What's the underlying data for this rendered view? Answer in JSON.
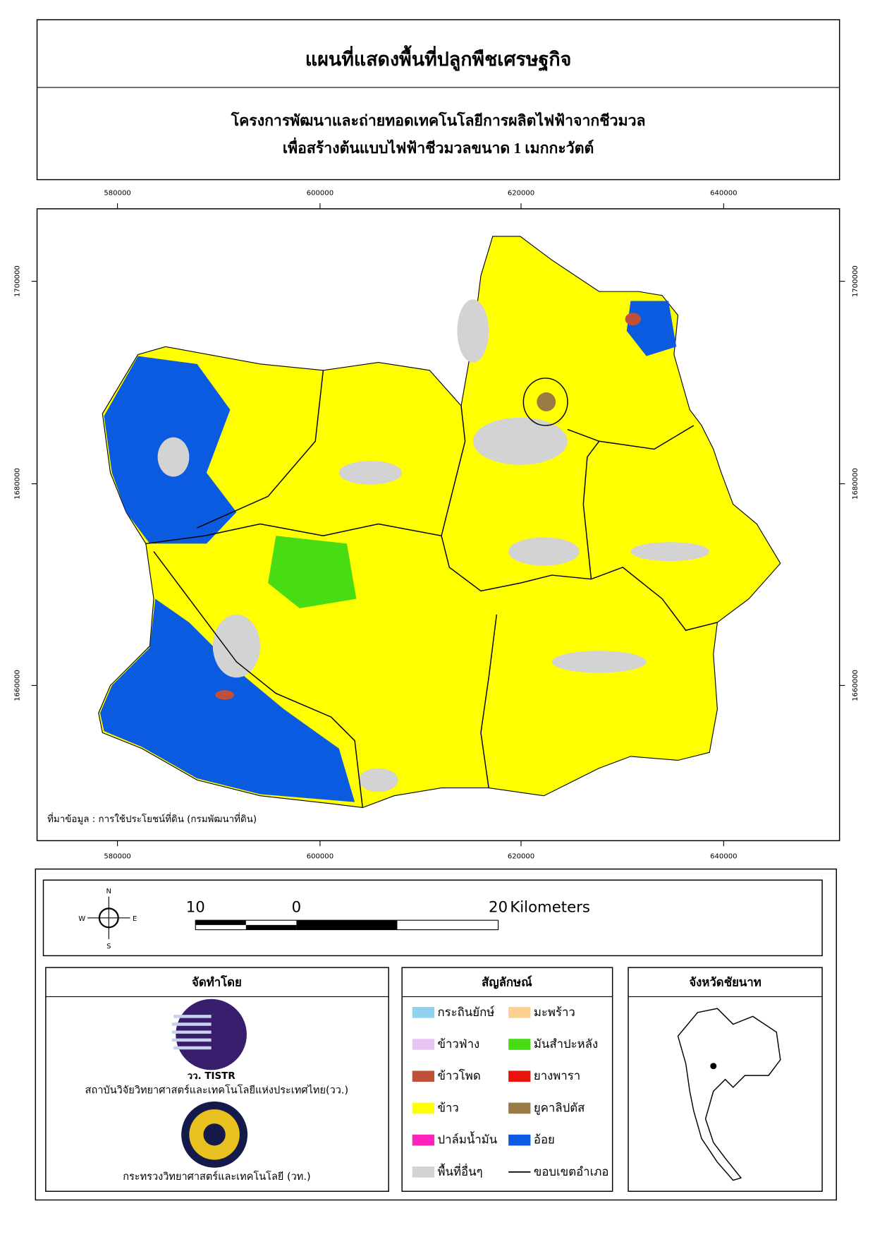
{
  "header": {
    "title": "แผนที่แสดงพื้นที่ปลูกพืชเศรษฐกิจ",
    "subtitle_lines": [
      "โครงการพัฒนาและถ่ายทอดเทคโนโลยีการผลิตไฟฟ้าจากชีวมวล",
      "เพื่อสร้างต้นแบบไฟฟ้าชีวมวลขนาด 1 เมกกะวัตต์"
    ]
  },
  "map": {
    "x_ticks": [
      580000,
      600000,
      620000,
      640000
    ],
    "y_ticks": [
      1700000,
      1680000,
      1660000
    ],
    "source": "ที่มาข้อมูล : การใช้ประโยชน์ที่ดิน  (กรมพัฒนาที่ดิน)"
  },
  "north_arrow": {
    "n": "N",
    "s": "S",
    "e": "E",
    "w": "W"
  },
  "scale_bar": {
    "labels": [
      "10",
      "0",
      "20",
      "Kilometers"
    ]
  },
  "credits": {
    "title": "จัดทำโดย",
    "logo_text": "วว. TISTR",
    "org1": "สถาบันวิจัยวิทยาศาสตร์และเทคโนโลยีแห่งประเทศไทย(วว.)",
    "org2": "กระทรวงวิทยาศาสตร์และเทคโนโลยี (วท.)"
  },
  "legend": {
    "title": "สัญลักษณ์",
    "items": [
      {
        "label": "กระถินยักษ์",
        "color": "#8fd3f0"
      },
      {
        "label": "มะพร้าว",
        "color": "#fcd18e"
      },
      {
        "label": "ข้าวฟ่าง",
        "color": "#e8c4f4"
      },
      {
        "label": "มันสำปะหลัง",
        "color": "#47dd12"
      },
      {
        "label": "ข้าวโพด",
        "color": "#c0503a"
      },
      {
        "label": "ยางพารา",
        "color": "#e8140c"
      },
      {
        "label": "ข้าว",
        "color": "#ffff00"
      },
      {
        "label": "ยูคาลิปตัส",
        "color": "#9a7b45"
      },
      {
        "label": "ปาล์มน้ำมัน",
        "color": "#ff22bb"
      },
      {
        "label": "อ้อย",
        "color": "#0b5be0"
      },
      {
        "label": "พื้นที่อื่นๆ",
        "color": "#d3d3d3"
      },
      {
        "label": "ขอบเขตอำเภอ",
        "color": "#000000",
        "symbol": "line"
      }
    ]
  },
  "inset": {
    "title": "จังหวัดชัยนาท"
  }
}
